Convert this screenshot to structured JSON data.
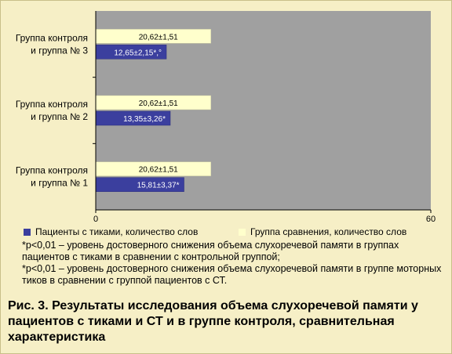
{
  "chart_data": {
    "type": "bar",
    "orientation": "horizontal",
    "categories": [
      "Группа контроля\nи группа № 3",
      "Группа контроля\nи группа № 2",
      "Группа контроля\nи группа № 1"
    ],
    "series": [
      {
        "name": "Группа сравнения, количество слов",
        "color": "#ffffcc",
        "values": [
          20.62,
          20.62,
          20.62
        ],
        "labels": [
          "20,62±1,51",
          "20,62±1,51",
          "20,62±1,51"
        ]
      },
      {
        "name": "Пациенты с тиками, количество слов",
        "color": "#3b3f9e",
        "values": [
          12.65,
          13.35,
          15.81
        ],
        "labels": [
          "12,65±2,15*,°",
          "13,35±3,26*",
          "15,81±3,37*"
        ]
      }
    ],
    "xlim": [
      0,
      60
    ],
    "xticks": [
      "0",
      "60"
    ],
    "plot_background": "#a0a0a0",
    "grid": false,
    "legend": "bottom"
  },
  "legend": {
    "patients_label": "Пациенты с тиками, количество слов",
    "comparison_label": "Группа сравнения, количество слов"
  },
  "notes": {
    "line1": "*p<0,01 – уровень достоверного снижения объема слухоречевой памяти в группах пациентов с тиками в сравнении с контрольной группой;",
    "line2": "*p<0,01 – уровень достоверного снижения объема слухоречевой памяти в группе моторных тиков в сравнении с группой пациентов с СТ."
  },
  "caption": "Рис. 3. Результаты исследования объема слухоречевой памяти у пациентов с тиками и СТ и в группе контроля, сравнительная характеристика"
}
